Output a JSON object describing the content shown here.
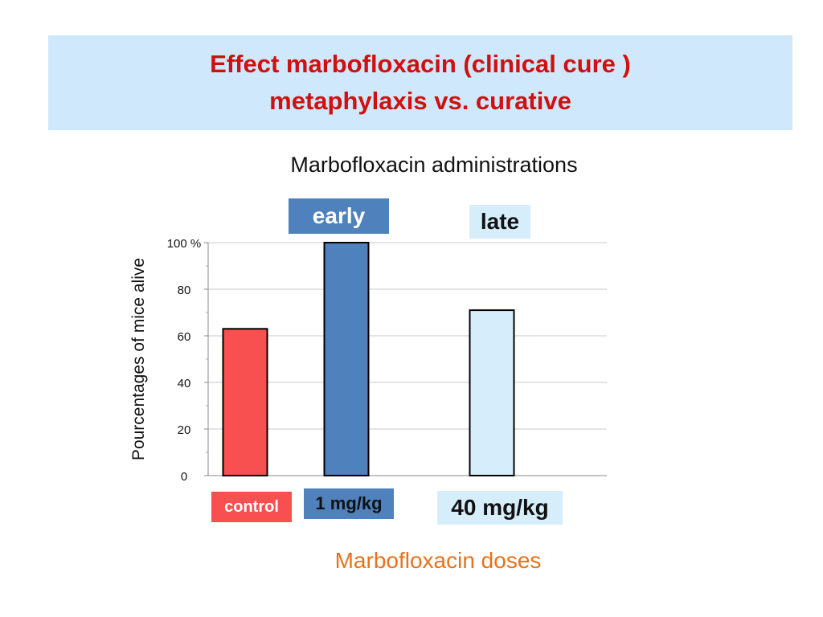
{
  "header": {
    "title_line1": "Effect marbofloxacin (clinical cure )",
    "title_line2": "metaphylaxis vs. curative"
  },
  "labels": {
    "administrations": "Marbofloxacin administrations",
    "early": "early",
    "late": "late",
    "doses": "Marbofloxacin doses",
    "control": "control",
    "dose_1": "1 mg/kg",
    "dose_40": "40 mg/kg"
  },
  "chart_data": {
    "type": "bar",
    "ylabel": "Pourcentages of mice alive",
    "ylim": [
      0,
      100
    ],
    "yticks": [
      0,
      20,
      40,
      60,
      80,
      100
    ],
    "ytick_labels": [
      "0",
      "20",
      "40",
      "60",
      "80",
      "100 %"
    ],
    "grid": true,
    "categories": [
      "control",
      "1 mg/kg",
      "40 mg/kg"
    ],
    "values": [
      63,
      100,
      71
    ],
    "colors": [
      "#f85050",
      "#4f81bd",
      "#d6eefc"
    ]
  }
}
